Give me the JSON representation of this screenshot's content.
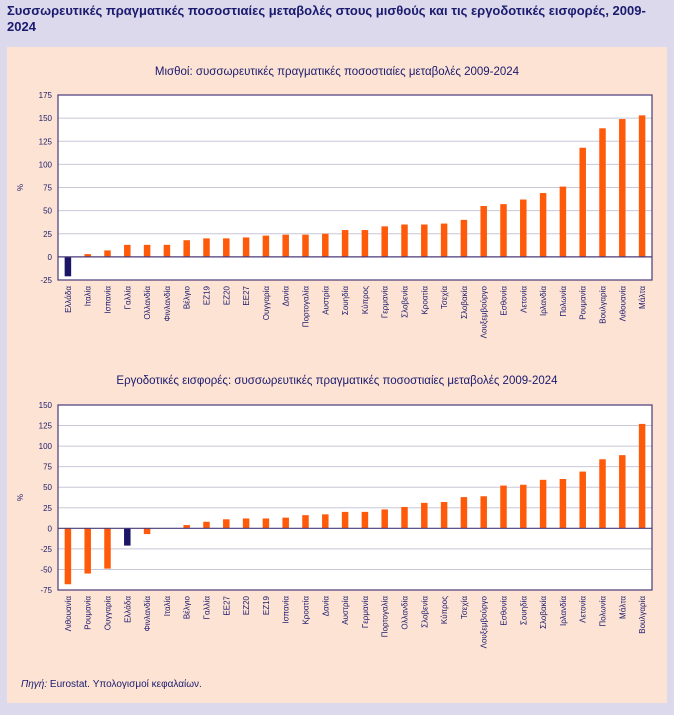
{
  "title": "Συσσωρευτικές πραγματικές ποσοστιαίες μεταβολές στους μισθούς και τις εργοδοτικές εισφορές, 2009-2024",
  "source_label": "Πηγή:",
  "source_text": " Eurostat. Υπολογισμοί κεφαλαίων.",
  "colors": {
    "bar": "#ff5a0a",
    "highlight": "#1c1464",
    "axis": "#4a3a7a",
    "grid": "#c8c8d8"
  },
  "chart_data": [
    {
      "type": "bar",
      "title": "Μισθοί: συσσωρευτικές πραγματικές ποσοστιαίες μεταβολές  2009-2024",
      "ylabel": "%",
      "ylim": [
        -25,
        175
      ],
      "yticks": [
        -25,
        0,
        25,
        50,
        75,
        100,
        125,
        150,
        175
      ],
      "grid": true,
      "highlight": "Ελλάδα",
      "categories": [
        "Ελλάδα",
        "Ιταλία",
        "Ισπανία",
        "Γαλλία",
        "Ολλανδία",
        "Φινλανδία",
        "Βέλγιο",
        "ΕΖ19",
        "ΕΖ20",
        "ΕΕ27",
        "Ουγγαρία",
        "Δανία",
        "Πορτογαλία",
        "Αυστρία",
        "Σουηδία",
        "Κύπρος",
        "Γερμανία",
        "Σλοβενία",
        "Κροατία",
        "Τσεχία",
        "Σλοβακία",
        "Λουξεμβούργο",
        "Εσθονία",
        "Λετονία",
        "Ιρλανδία",
        "Πολωνία",
        "Ρουμανία",
        "Βουλγαρία",
        "Λιθουανία",
        "Μάλτα"
      ],
      "values": [
        -21,
        3,
        7,
        13,
        13,
        13,
        18,
        20,
        20,
        21,
        23,
        24,
        24,
        25,
        29,
        29,
        33,
        35,
        35,
        36,
        40,
        55,
        57,
        62,
        69,
        76,
        118,
        139,
        149,
        153
      ]
    },
    {
      "type": "bar",
      "title": "Εργοδοτικές εισφορές: συσσωρευτικές πραγματικές ποσοστιαίες μεταβολές 2009-2024",
      "ylabel": "%",
      "ylim": [
        -75,
        150
      ],
      "yticks": [
        -75,
        -50,
        -25,
        0,
        25,
        50,
        75,
        100,
        125,
        150
      ],
      "grid": true,
      "highlight": "Ελλάδα",
      "categories": [
        "Λιθουανία",
        "Ρουμανία",
        "Ουγγαρία",
        "Ελλάδα",
        "Φινλανδία",
        "Ιταλία",
        "Βέλγιο",
        "Γαλλία",
        "ΕΕ27",
        "ΕΖ20",
        "ΕΖ19",
        "Ισπανία",
        "Κροατία",
        "Δανία",
        "Αυστρία",
        "Γερμανία",
        "Πορτογαλία",
        "Ολλανδία",
        "Σλοβενία",
        "Κύπρος",
        "Τσεχία",
        "Λουξεμβούργο",
        "Εσθονία",
        "Σουηδία",
        "Σλοβακία",
        "Ιρλανδία",
        "Λετονία",
        "Πολωνία",
        "Μάλτα",
        "Βουλγαρία"
      ],
      "values": [
        -68,
        -55,
        -49,
        -21,
        -7,
        0,
        4,
        8,
        11,
        12,
        12,
        13,
        16,
        17,
        20,
        20,
        23,
        26,
        31,
        32,
        38,
        39,
        52,
        53,
        59,
        60,
        69,
        84,
        89,
        127
      ]
    }
  ]
}
